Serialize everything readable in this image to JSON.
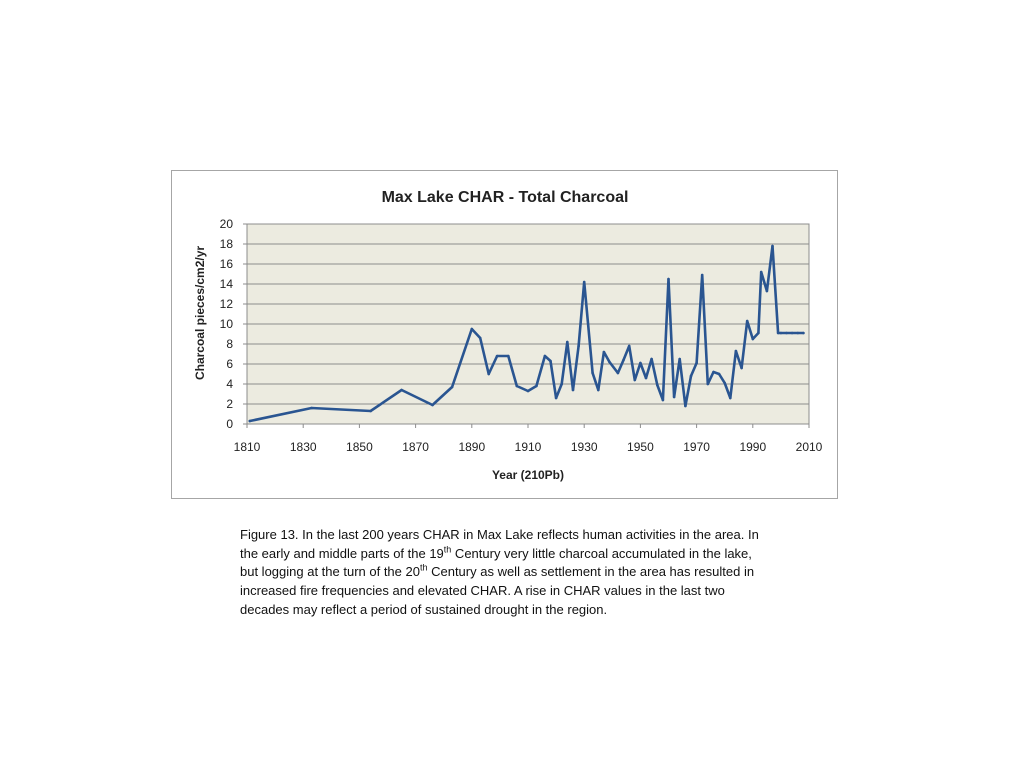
{
  "chart_data": {
    "type": "line",
    "title": "Max Lake CHAR - Total Charcoal",
    "xlabel": "Year (210Pb)",
    "ylabel": "Charcoal pieces/cm2/yr",
    "xlim": [
      1810,
      2010
    ],
    "ylim": [
      0,
      20
    ],
    "xticks": [
      "1810",
      "1830",
      "1850",
      "1870",
      "1890",
      "1910",
      "1930",
      "1950",
      "1970",
      "1990",
      "2010"
    ],
    "yticks": [
      "0",
      "2",
      "4",
      "6",
      "8",
      "10",
      "12",
      "14",
      "16",
      "18",
      "20"
    ],
    "grid": true,
    "legend": false,
    "line_color": "#2a5591",
    "plot_background": "#ecebe0",
    "series": [
      {
        "x": [
          1811,
          1833,
          1854,
          1865,
          1876,
          1883,
          1890,
          1893,
          1896,
          1899,
          1903,
          1906,
          1910,
          1913,
          1916,
          1918,
          1920,
          1922,
          1924,
          1926,
          1928,
          1930,
          1933,
          1935,
          1937,
          1939,
          1942,
          1944,
          1946,
          1948,
          1950,
          1952,
          1954,
          1956,
          1958,
          1960,
          1962,
          1964,
          1966,
          1968,
          1970,
          1972,
          1974,
          1976,
          1978,
          1980,
          1982,
          1984,
          1986,
          1988,
          1990,
          1992,
          1993,
          1995,
          1997,
          1999,
          2000,
          2002,
          2004,
          2006,
          2008
        ],
        "y": [
          0.3,
          1.6,
          1.3,
          3.4,
          1.9,
          3.7,
          9.5,
          8.6,
          5.0,
          6.8,
          6.8,
          3.8,
          3.3,
          3.8,
          6.8,
          6.3,
          2.6,
          4.0,
          8.2,
          3.4,
          7.8,
          14.2,
          5.1,
          3.4,
          7.2,
          6.2,
          5.1,
          6.4,
          7.8,
          4.4,
          6.1,
          4.6,
          6.5,
          3.9,
          2.4,
          14.5,
          2.7,
          6.5,
          1.8,
          4.8,
          6.1,
          14.9,
          4.0,
          5.2,
          5.0,
          4.1,
          2.6,
          7.3,
          5.6,
          10.3,
          8.5,
          9.1,
          15.2,
          13.3,
          17.8,
          9.1,
          9.1,
          9.1,
          9.1,
          9.1,
          9.1
        ]
      }
    ]
  },
  "caption": {
    "part1": "Figure 13.  In the last 200 years CHAR in Max Lake reflects human activities in the area.  In the early and middle parts of the 19",
    "sup1": "th",
    "part2": " Century very little charcoal accumulated in the lake, but logging at the turn of the 20",
    "sup2": "th",
    "part3": " Century as well as settlement in the area has resulted in increased fire frequencies and elevated CHAR.  A rise in CHAR values in the last two decades may reflect a period of sustained drought in the region."
  }
}
